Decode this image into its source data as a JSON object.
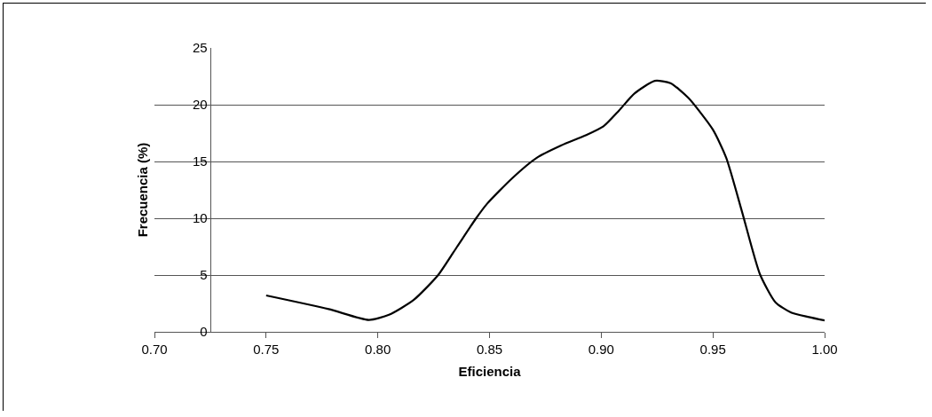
{
  "chart_data": {
    "type": "line",
    "xlabel": "Eficiencia",
    "ylabel": "Frecuencia (%)",
    "x": [
      0.75,
      0.778,
      0.796,
      0.805,
      0.816,
      0.827,
      0.8355,
      0.844,
      0.849,
      0.86,
      0.871,
      0.882,
      0.893,
      0.901,
      0.908,
      0.915,
      0.924,
      0.931,
      0.939,
      0.95,
      0.956,
      0.963,
      0.971,
      0.978,
      0.985,
      0.993,
      1.0
    ],
    "series": [
      {
        "color": "#000000",
        "values": [
          3.2,
          2.0,
          1.05,
          1.5,
          2.8,
          5.0,
          7.5,
          10,
          11.3,
          13.5,
          15.3,
          16.4,
          17.3,
          18.1,
          19.5,
          21.0,
          22.1,
          21.9,
          20.6,
          17.8,
          15.3,
          10.6,
          5.1,
          2.6,
          1.7,
          1.3,
          1.0
        ]
      }
    ],
    "xlim": [
      0.7,
      1.0
    ],
    "xticks": [
      {
        "value": 0.7,
        "label": "0.70"
      },
      {
        "value": 0.75,
        "label": "0.75"
      },
      {
        "value": 0.8,
        "label": "0.80"
      },
      {
        "value": 0.85,
        "label": "0.85"
      },
      {
        "value": 0.9,
        "label": "0.90"
      },
      {
        "value": 0.95,
        "label": "0.95"
      },
      {
        "value": 1.0,
        "label": "1.00"
      }
    ],
    "ylim": [
      0,
      25
    ],
    "yticks": [
      0,
      5,
      10,
      15,
      20,
      25
    ],
    "grid": "y",
    "marker": "none",
    "line_style": "solid"
  }
}
